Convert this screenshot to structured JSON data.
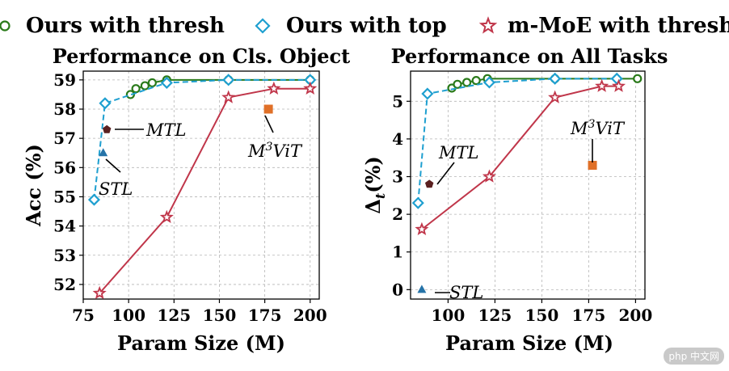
{
  "legend": {
    "items": [
      {
        "label": "Ours with thresh",
        "color": "#2a7a1a",
        "marker": "circle"
      },
      {
        "label": "Ours with top",
        "color": "#1e9fd0",
        "marker": "diamond"
      },
      {
        "label": "m-MoE with thresh",
        "color": "#c0364a",
        "marker": "star"
      }
    ]
  },
  "watermark": "php 中文网",
  "chart_data": [
    {
      "type": "line",
      "title": "Performance on Cls. Object",
      "xlabel": "Param Size (M)",
      "ylabel": "Acc (%)",
      "xlim": [
        75,
        205
      ],
      "ylim": [
        51.5,
        59.3
      ],
      "xticks": [
        75,
        100,
        125,
        150,
        175,
        200
      ],
      "yticks": [
        52,
        53,
        54,
        55,
        56,
        57,
        58,
        59
      ],
      "grid": true,
      "series": [
        {
          "name": "Ours with thresh",
          "color": "#2a7a1a",
          "marker": "circle",
          "dash": "solid",
          "x": [
            101,
            104,
            109,
            113,
            121,
            155,
            200
          ],
          "y": [
            58.5,
            58.7,
            58.8,
            58.9,
            59.0,
            59.0,
            59.0
          ]
        },
        {
          "name": "Ours with top",
          "color": "#1e9fd0",
          "marker": "diamond",
          "dash": "dashed",
          "x": [
            81,
            87,
            121,
            155,
            200
          ],
          "y": [
            54.9,
            58.2,
            58.9,
            59.0,
            59.0
          ]
        },
        {
          "name": "m-MoE with thresh",
          "color": "#c0364a",
          "marker": "star",
          "dash": "solid",
          "x": [
            84,
            121,
            155,
            180,
            200
          ],
          "y": [
            51.7,
            54.3,
            58.4,
            58.7,
            58.7
          ]
        }
      ],
      "points": [
        {
          "label": "MTL",
          "x": 88,
          "y": 57.3,
          "color": "#5a2020",
          "marker": "pentagon"
        },
        {
          "label": "STL",
          "x": 86,
          "y": 56.5,
          "color": "#2573a8",
          "marker": "triangle"
        },
        {
          "label": "M3ViT",
          "x": 177,
          "y": 58.0,
          "color": "#e07028",
          "marker": "square"
        }
      ]
    },
    {
      "type": "line",
      "title": "Performance on All Tasks",
      "xlabel": "Param Size (M)",
      "ylabel": "Δt(%)",
      "xlim": [
        80,
        205
      ],
      "ylim": [
        -0.25,
        5.8
      ],
      "xticks": [
        100,
        125,
        150,
        175,
        200
      ],
      "yticks": [
        0,
        1,
        2,
        3,
        4,
        5
      ],
      "grid": true,
      "series": [
        {
          "name": "Ours with thresh",
          "color": "#2a7a1a",
          "marker": "circle",
          "dash": "solid",
          "x": [
            102,
            105,
            110,
            115,
            121,
            157,
            201
          ],
          "y": [
            5.35,
            5.45,
            5.5,
            5.55,
            5.6,
            5.6,
            5.6
          ]
        },
        {
          "name": "Ours with top",
          "color": "#1e9fd0",
          "marker": "diamond",
          "dash": "dashed",
          "x": [
            84,
            89,
            122,
            157,
            190
          ],
          "y": [
            2.3,
            5.2,
            5.5,
            5.6,
            5.6
          ]
        },
        {
          "name": "m-MoE with thresh",
          "color": "#c0364a",
          "marker": "star",
          "dash": "solid",
          "x": [
            86,
            122,
            157,
            182,
            191
          ],
          "y": [
            1.6,
            3.0,
            5.1,
            5.4,
            5.4
          ]
        }
      ],
      "points": [
        {
          "label": "MTL",
          "x": 90,
          "y": 2.8,
          "color": "#5a2020",
          "marker": "pentagon"
        },
        {
          "label": "STL",
          "x": 86,
          "y": 0.0,
          "color": "#2573a8",
          "marker": "triangle"
        },
        {
          "label": "M3ViT",
          "x": 177,
          "y": 3.3,
          "color": "#e07028",
          "marker": "square"
        }
      ]
    }
  ]
}
